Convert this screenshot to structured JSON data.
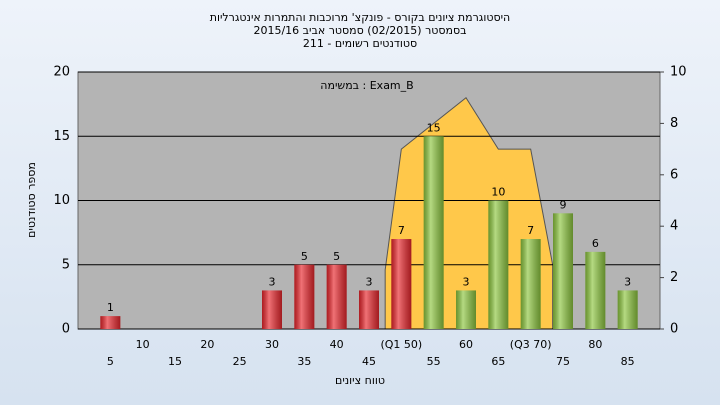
{
  "chart_data": {
    "type": "bar",
    "title": "היסטוגרמת ציונים בקורס - פונקצ' מרוכבות והתמרות אינטגרליות",
    "subtitle": "בסמסטר  (02/2015)  סמסטר אביב 2015/16",
    "subtitle2": "סטודנטים רשומים - 211",
    "annotation": "במשימה : Exam_B",
    "xlabel": "טווח ציונים",
    "ylabel": "מספר סטודנטים",
    "categories": [
      "5",
      "10",
      "15",
      "20",
      "25",
      "30",
      "35",
      "40",
      "45",
      "(Q1 50)",
      "55",
      "60",
      "65",
      "(Q3 70)",
      "75",
      "80",
      "85"
    ],
    "values": [
      1,
      0,
      0,
      0,
      0,
      3,
      5,
      5,
      3,
      7,
      15,
      3,
      10,
      7,
      9,
      6,
      3
    ],
    "colors": [
      "#e8262c",
      "#e8262c",
      "#e8262c",
      "#e8262c",
      "#e8262c",
      "#e8262c",
      "#e8262c",
      "#e8262c",
      "#e8262c",
      "#e8262c",
      "#8dc63f",
      "#8dc63f",
      "#8dc63f",
      "#8dc63f",
      "#8dc63f",
      "#8dc63f",
      "#8dc63f"
    ],
    "area": {
      "x": [
        47.5,
        50,
        60,
        65,
        70,
        73.4
      ],
      "values": [
        2.3,
        7,
        9,
        7,
        7,
        2.5
      ],
      "color": "#ffc84a",
      "axis": "y2"
    },
    "xlim": [
      0,
      90
    ],
    "ylim": [
      0,
      20
    ],
    "yticks": [
      0,
      5,
      10,
      15,
      20
    ],
    "y2lim": [
      0,
      10
    ],
    "y2ticks": [
      0,
      2,
      4,
      6,
      8,
      10
    ],
    "grid": true
  }
}
